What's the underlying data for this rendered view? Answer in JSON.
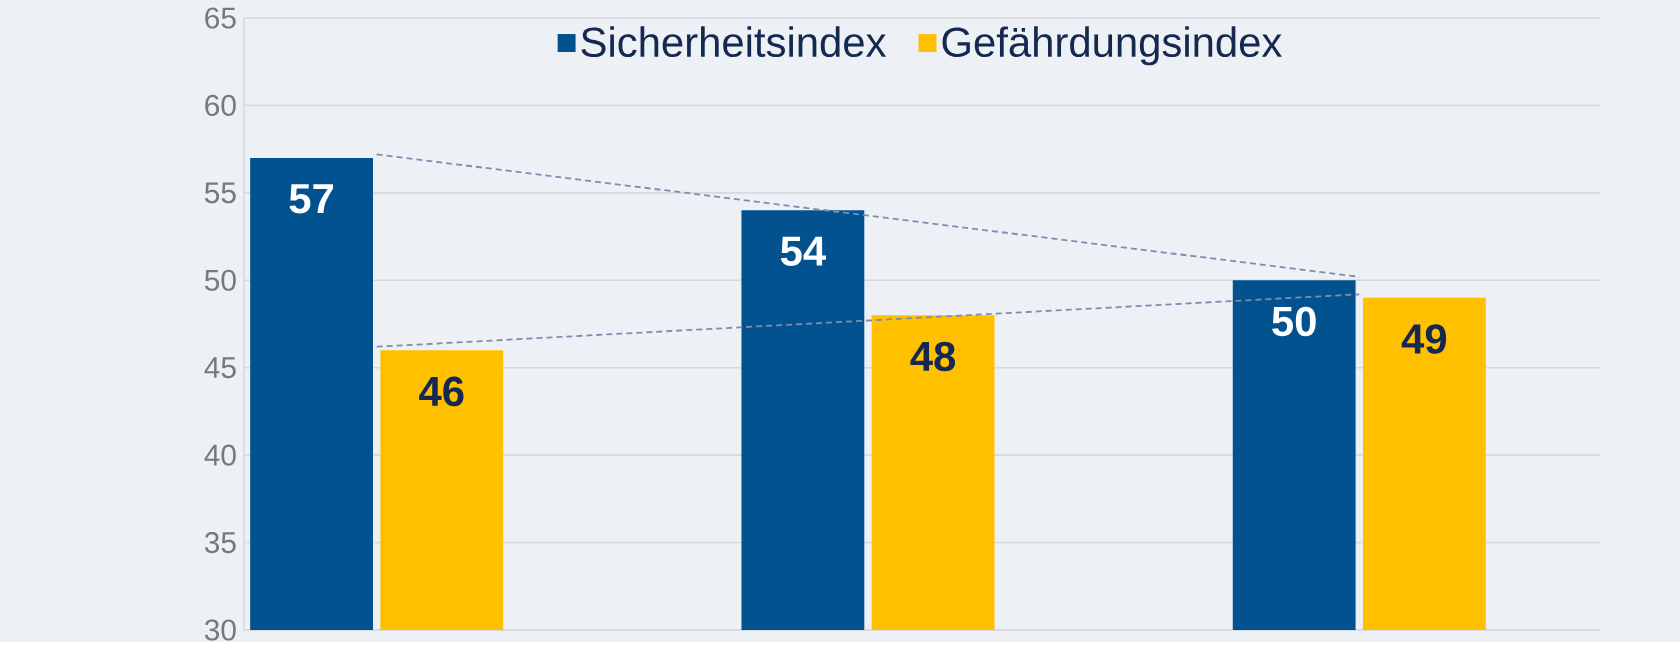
{
  "chart_data": {
    "type": "bar",
    "categories": [
      null,
      null,
      null
    ],
    "series": [
      {
        "name": "Sicherheitsindex",
        "color": "#02528f",
        "values": [
          57,
          54,
          50
        ],
        "value_labels": [
          "57",
          "54",
          "50"
        ]
      },
      {
        "name": "Gefährdungsindex",
        "color": "#ffc000",
        "values": [
          46,
          48,
          49
        ],
        "value_labels": [
          "46",
          "48",
          "49"
        ]
      },
      {
        "type": "line",
        "values": [
          57.2,
          53.7,
          50.2
        ],
        "color": "#7f8cae",
        "line_style": "dashed"
      },
      {
        "type": "line",
        "values": [
          46.2,
          47.7,
          49.2
        ],
        "color": "#7f8cae",
        "line_style": "dashed"
      }
    ],
    "ylim": [
      30,
      65
    ],
    "yticks": [
      30,
      35,
      40,
      45,
      50,
      55,
      60,
      65
    ],
    "grid": "y",
    "legend": "top"
  }
}
